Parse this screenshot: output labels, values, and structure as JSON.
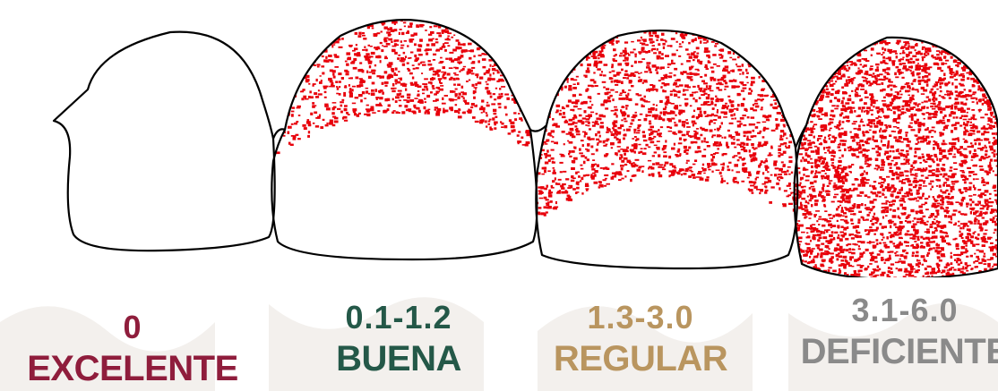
{
  "colors": {
    "plaque": "#e8000b",
    "outline": "#000000",
    "background_pattern": "#f2efec",
    "excelente": "#8f1d3c",
    "buena": "#245848",
    "regular": "#b9955f",
    "deficiente": "#8a8a8a"
  },
  "plaque_levels": [
    0.0,
    0.4,
    0.62,
    1.0
  ],
  "categories": [
    {
      "score": "0",
      "grade": "EXCELENTE"
    },
    {
      "score": "0.1-1.2",
      "grade": "BUENA"
    },
    {
      "score": "1.3-3.0",
      "grade": "REGULAR"
    },
    {
      "score": "3.1-6.0",
      "grade": "DEFICIENTE"
    }
  ]
}
